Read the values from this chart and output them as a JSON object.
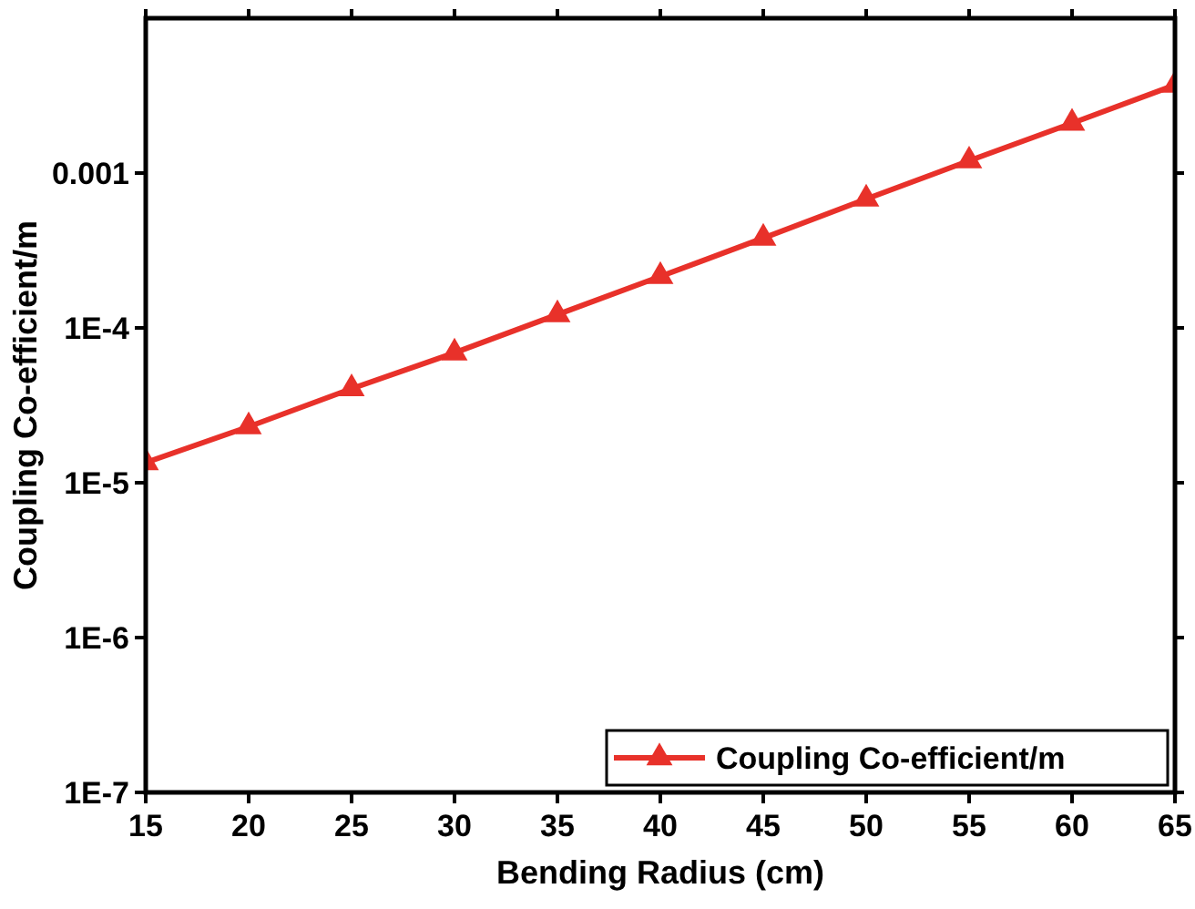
{
  "chart_data": {
    "type": "line",
    "xlabel": "Bending Radius (cm)",
    "ylabel": "Coupling Co-efficient/m",
    "x": [
      15,
      20,
      25,
      30,
      35,
      40,
      45,
      50,
      55,
      60,
      65
    ],
    "series": [
      {
        "name": "Coupling Co-efficient/m",
        "color": "#e8312a",
        "values": [
          1.35e-05,
          2.3e-05,
          4.05e-05,
          6.9e-05,
          0.000122,
          0.000215,
          0.00038,
          0.00068,
          0.0012,
          0.0021,
          0.0037
        ]
      }
    ],
    "log": "y",
    "xlim": [
      15,
      65
    ],
    "ylim": [
      1e-07,
      0.01
    ],
    "xticks": [
      15,
      20,
      25,
      30,
      35,
      40,
      45,
      50,
      55,
      60,
      65
    ],
    "yticks": [
      {
        "value": 1e-07,
        "label": "1E-7"
      },
      {
        "value": 1e-06,
        "label": "1E-6"
      },
      {
        "value": 1e-05,
        "label": "1E-5"
      },
      {
        "value": 0.0001,
        "label": "1E-4"
      },
      0.001
    ],
    "legend": "bottom right",
    "marker": "triangle",
    "line_style": "solid",
    "grid": false
  }
}
